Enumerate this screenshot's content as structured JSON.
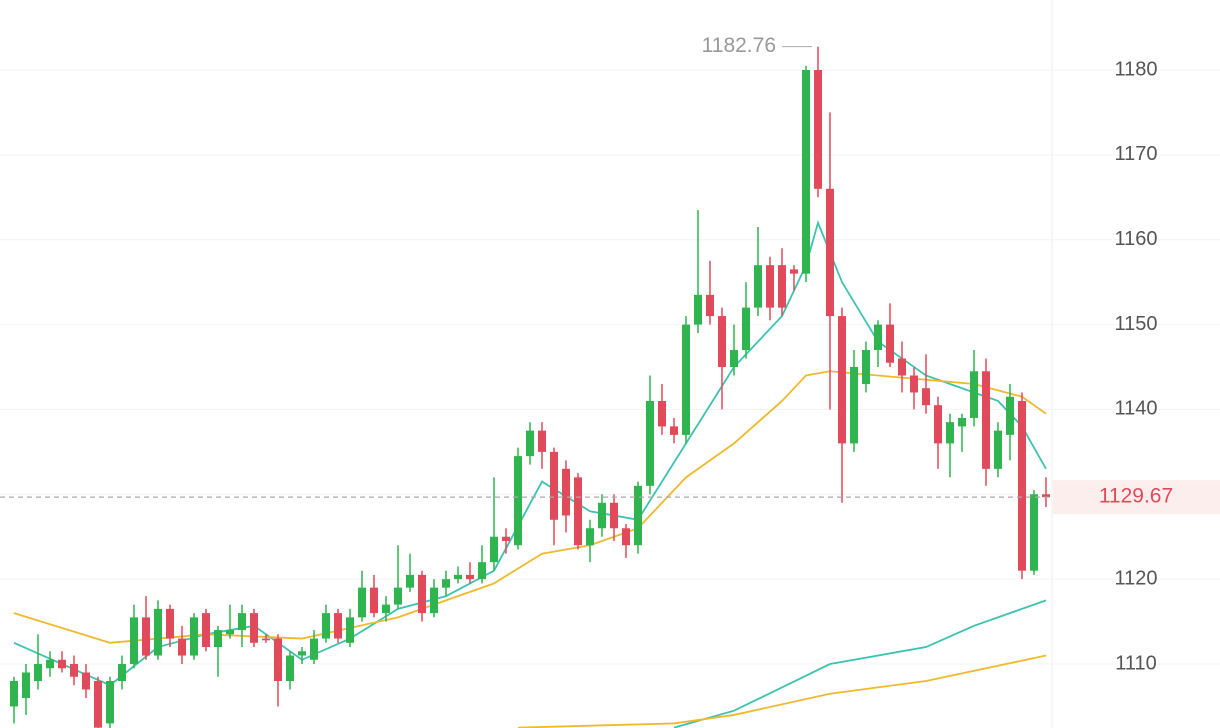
{
  "chart_data": {
    "type": "candlestick",
    "up_color": "#2fb44f",
    "down_color": "#e04a5a",
    "ylim": [
      1102.46,
      1188.25
    ],
    "yticks": [
      1110,
      1120,
      1130,
      1140,
      1150,
      1160,
      1170,
      1180
    ],
    "yticks_shown": [
      1110,
      1120,
      1140,
      1150,
      1160,
      1170,
      1180
    ],
    "grid": true,
    "max_label": 1182.76,
    "last_price": 1129.67,
    "ohlc": [
      [
        1105,
        1108.5,
        1103,
        1108
      ],
      [
        1106,
        1110,
        1104,
        1109
      ],
      [
        1108,
        1113.5,
        1107,
        1110
      ],
      [
        1109.5,
        1111.5,
        1108.5,
        1110.5
      ],
      [
        1110.5,
        1111.5,
        1109,
        1109.5
      ],
      [
        1110,
        1111,
        1107.5,
        1108.5
      ],
      [
        1109,
        1110,
        1106,
        1107
      ],
      [
        1108,
        1108.5,
        1101,
        1102.5
      ],
      [
        1103,
        1108.5,
        1102,
        1108
      ],
      [
        1108,
        1111,
        1107,
        1110
      ],
      [
        1110,
        1117,
        1109.5,
        1115.5
      ],
      [
        1115.5,
        1118,
        1110.5,
        1111
      ],
      [
        1111,
        1117.5,
        1110.5,
        1116.5
      ],
      [
        1116.5,
        1117,
        1112,
        1113
      ],
      [
        1113,
        1114.5,
        1110,
        1111
      ],
      [
        1111,
        1116,
        1110.5,
        1115.5
      ],
      [
        1116,
        1116.5,
        1111.5,
        1112
      ],
      [
        1112,
        1114.5,
        1108.5,
        1114
      ],
      [
        1113.5,
        1117,
        1113,
        1114
      ],
      [
        1114,
        1117,
        1112,
        1116
      ],
      [
        1116,
        1116.5,
        1112,
        1112.5
      ],
      [
        1113,
        1113.5,
        1112.5,
        1112.8
      ],
      [
        1113,
        1113.5,
        1105,
        1108
      ],
      [
        1108,
        1111.5,
        1107,
        1111
      ],
      [
        1111,
        1112,
        1110,
        1111.5
      ],
      [
        1110.5,
        1114,
        1110,
        1113
      ],
      [
        1113,
        1117,
        1112.5,
        1116
      ],
      [
        1116,
        1116.5,
        1112.5,
        1113
      ],
      [
        1112.5,
        1116.5,
        1112,
        1115.5
      ],
      [
        1115.5,
        1121,
        1115,
        1119
      ],
      [
        1119,
        1120.5,
        1115.5,
        1116
      ],
      [
        1116,
        1118,
        1115,
        1117
      ],
      [
        1117,
        1124,
        1116.5,
        1119
      ],
      [
        1119,
        1123,
        1118.5,
        1120.5
      ],
      [
        1120.5,
        1121,
        1115,
        1116
      ],
      [
        1116,
        1120,
        1115.5,
        1119
      ],
      [
        1119,
        1121,
        1118,
        1120
      ],
      [
        1120,
        1121.5,
        1119.5,
        1120.5
      ],
      [
        1120.5,
        1122,
        1119.5,
        1120
      ],
      [
        1120,
        1124,
        1119.5,
        1122
      ],
      [
        1122,
        1132,
        1121,
        1125
      ],
      [
        1125,
        1126,
        1123,
        1124.5
      ],
      [
        1124,
        1135.5,
        1123.5,
        1134.5
      ],
      [
        1134.5,
        1138.5,
        1133.5,
        1137.5
      ],
      [
        1137.5,
        1138.5,
        1133,
        1135
      ],
      [
        1135,
        1135.5,
        1124,
        1127
      ],
      [
        1133,
        1134,
        1125.5,
        1127.5
      ],
      [
        1132,
        1132.5,
        1123.5,
        1124
      ],
      [
        1124,
        1127,
        1122,
        1126
      ],
      [
        1126,
        1130,
        1125,
        1129
      ],
      [
        1129,
        1130,
        1124.5,
        1126
      ],
      [
        1126,
        1126.5,
        1122.5,
        1124
      ],
      [
        1124,
        1131.5,
        1123,
        1131
      ],
      [
        1131,
        1144,
        1130,
        1141
      ],
      [
        1141,
        1143,
        1137,
        1138
      ],
      [
        1138,
        1139,
        1136,
        1137
      ],
      [
        1137,
        1151,
        1136,
        1150
      ],
      [
        1150,
        1163.5,
        1149,
        1153.5
      ],
      [
        1153.5,
        1157.5,
        1150,
        1151
      ],
      [
        1151,
        1152,
        1140,
        1145
      ],
      [
        1145,
        1150,
        1144,
        1147
      ],
      [
        1147,
        1155,
        1146,
        1152
      ],
      [
        1152,
        1161.5,
        1151,
        1157
      ],
      [
        1157,
        1158,
        1150.5,
        1152
      ],
      [
        1157,
        1159,
        1151,
        1152
      ],
      [
        1156.5,
        1157,
        1154,
        1156
      ],
      [
        1156,
        1180.5,
        1155,
        1180
      ],
      [
        1180,
        1182.76,
        1165,
        1166
      ],
      [
        1166,
        1175,
        1140,
        1151
      ],
      [
        1151,
        1152,
        1129,
        1136
      ],
      [
        1136,
        1147,
        1135,
        1145
      ],
      [
        1143,
        1148,
        1142,
        1147
      ],
      [
        1147,
        1150.5,
        1145,
        1150
      ],
      [
        1150,
        1152.5,
        1145,
        1145.5
      ],
      [
        1146,
        1148,
        1142,
        1144
      ],
      [
        1144,
        1145,
        1140,
        1142
      ],
      [
        1142.5,
        1146.5,
        1139.5,
        1140.5
      ],
      [
        1140.5,
        1141.5,
        1133,
        1136
      ],
      [
        1136,
        1139.5,
        1132,
        1138.5
      ],
      [
        1138,
        1139.5,
        1135,
        1139
      ],
      [
        1139,
        1147,
        1138,
        1144.5
      ],
      [
        1144.5,
        1146,
        1131,
        1133
      ],
      [
        1133,
        1138.5,
        1132,
        1137.5
      ],
      [
        1137,
        1143,
        1134,
        1141.5
      ],
      [
        1141,
        1142,
        1120,
        1121
      ],
      [
        1121,
        1130.5,
        1120.5,
        1130
      ],
      [
        1130,
        1132,
        1128.5,
        1129.67
      ]
    ],
    "series": [
      {
        "color": "#3cc2b0",
        "x": [
          0,
          4,
          8,
          12,
          16,
          20,
          24,
          28,
          32,
          36,
          40,
          44,
          48,
          52,
          56,
          60,
          64,
          66,
          67,
          69,
          72,
          76,
          80,
          82,
          84,
          86
        ],
        "values": [
          1112.5,
          1110,
          1107.5,
          1112,
          1113.5,
          1114.5,
          1110.5,
          1113,
          1116.5,
          1118,
          1121,
          1131.5,
          1128,
          1127,
          1136,
          1145,
          1151,
          1157,
          1162,
          1155,
          1148,
          1144,
          1142,
          1141,
          1138,
          1133
        ]
      },
      {
        "color": "#f0b92d",
        "x": [
          0,
          8,
          16,
          24,
          32,
          40,
          44,
          48,
          52,
          56,
          60,
          64,
          66,
          68,
          72,
          76,
          80,
          84,
          86
        ],
        "values": [
          1116,
          1112.5,
          1113.5,
          1113,
          1115.5,
          1119.5,
          1123,
          1124,
          1126,
          1132,
          1136,
          1141,
          1144,
          1144.5,
          1144,
          1143.5,
          1143,
          1141.5,
          1139.5
        ]
      },
      {
        "color": "#3cc2b0",
        "x": [
          55,
          60,
          68,
          76,
          80,
          86
        ],
        "values": [
          1102.5,
          1104.5,
          1110,
          1112,
          1114.5,
          1117.5
        ]
      },
      {
        "color": "#f0b92d",
        "x": [
          42,
          55,
          60,
          68,
          76,
          86
        ],
        "values": [
          1102.5,
          1103,
          1104,
          1106.5,
          1108,
          1111
        ]
      }
    ]
  }
}
